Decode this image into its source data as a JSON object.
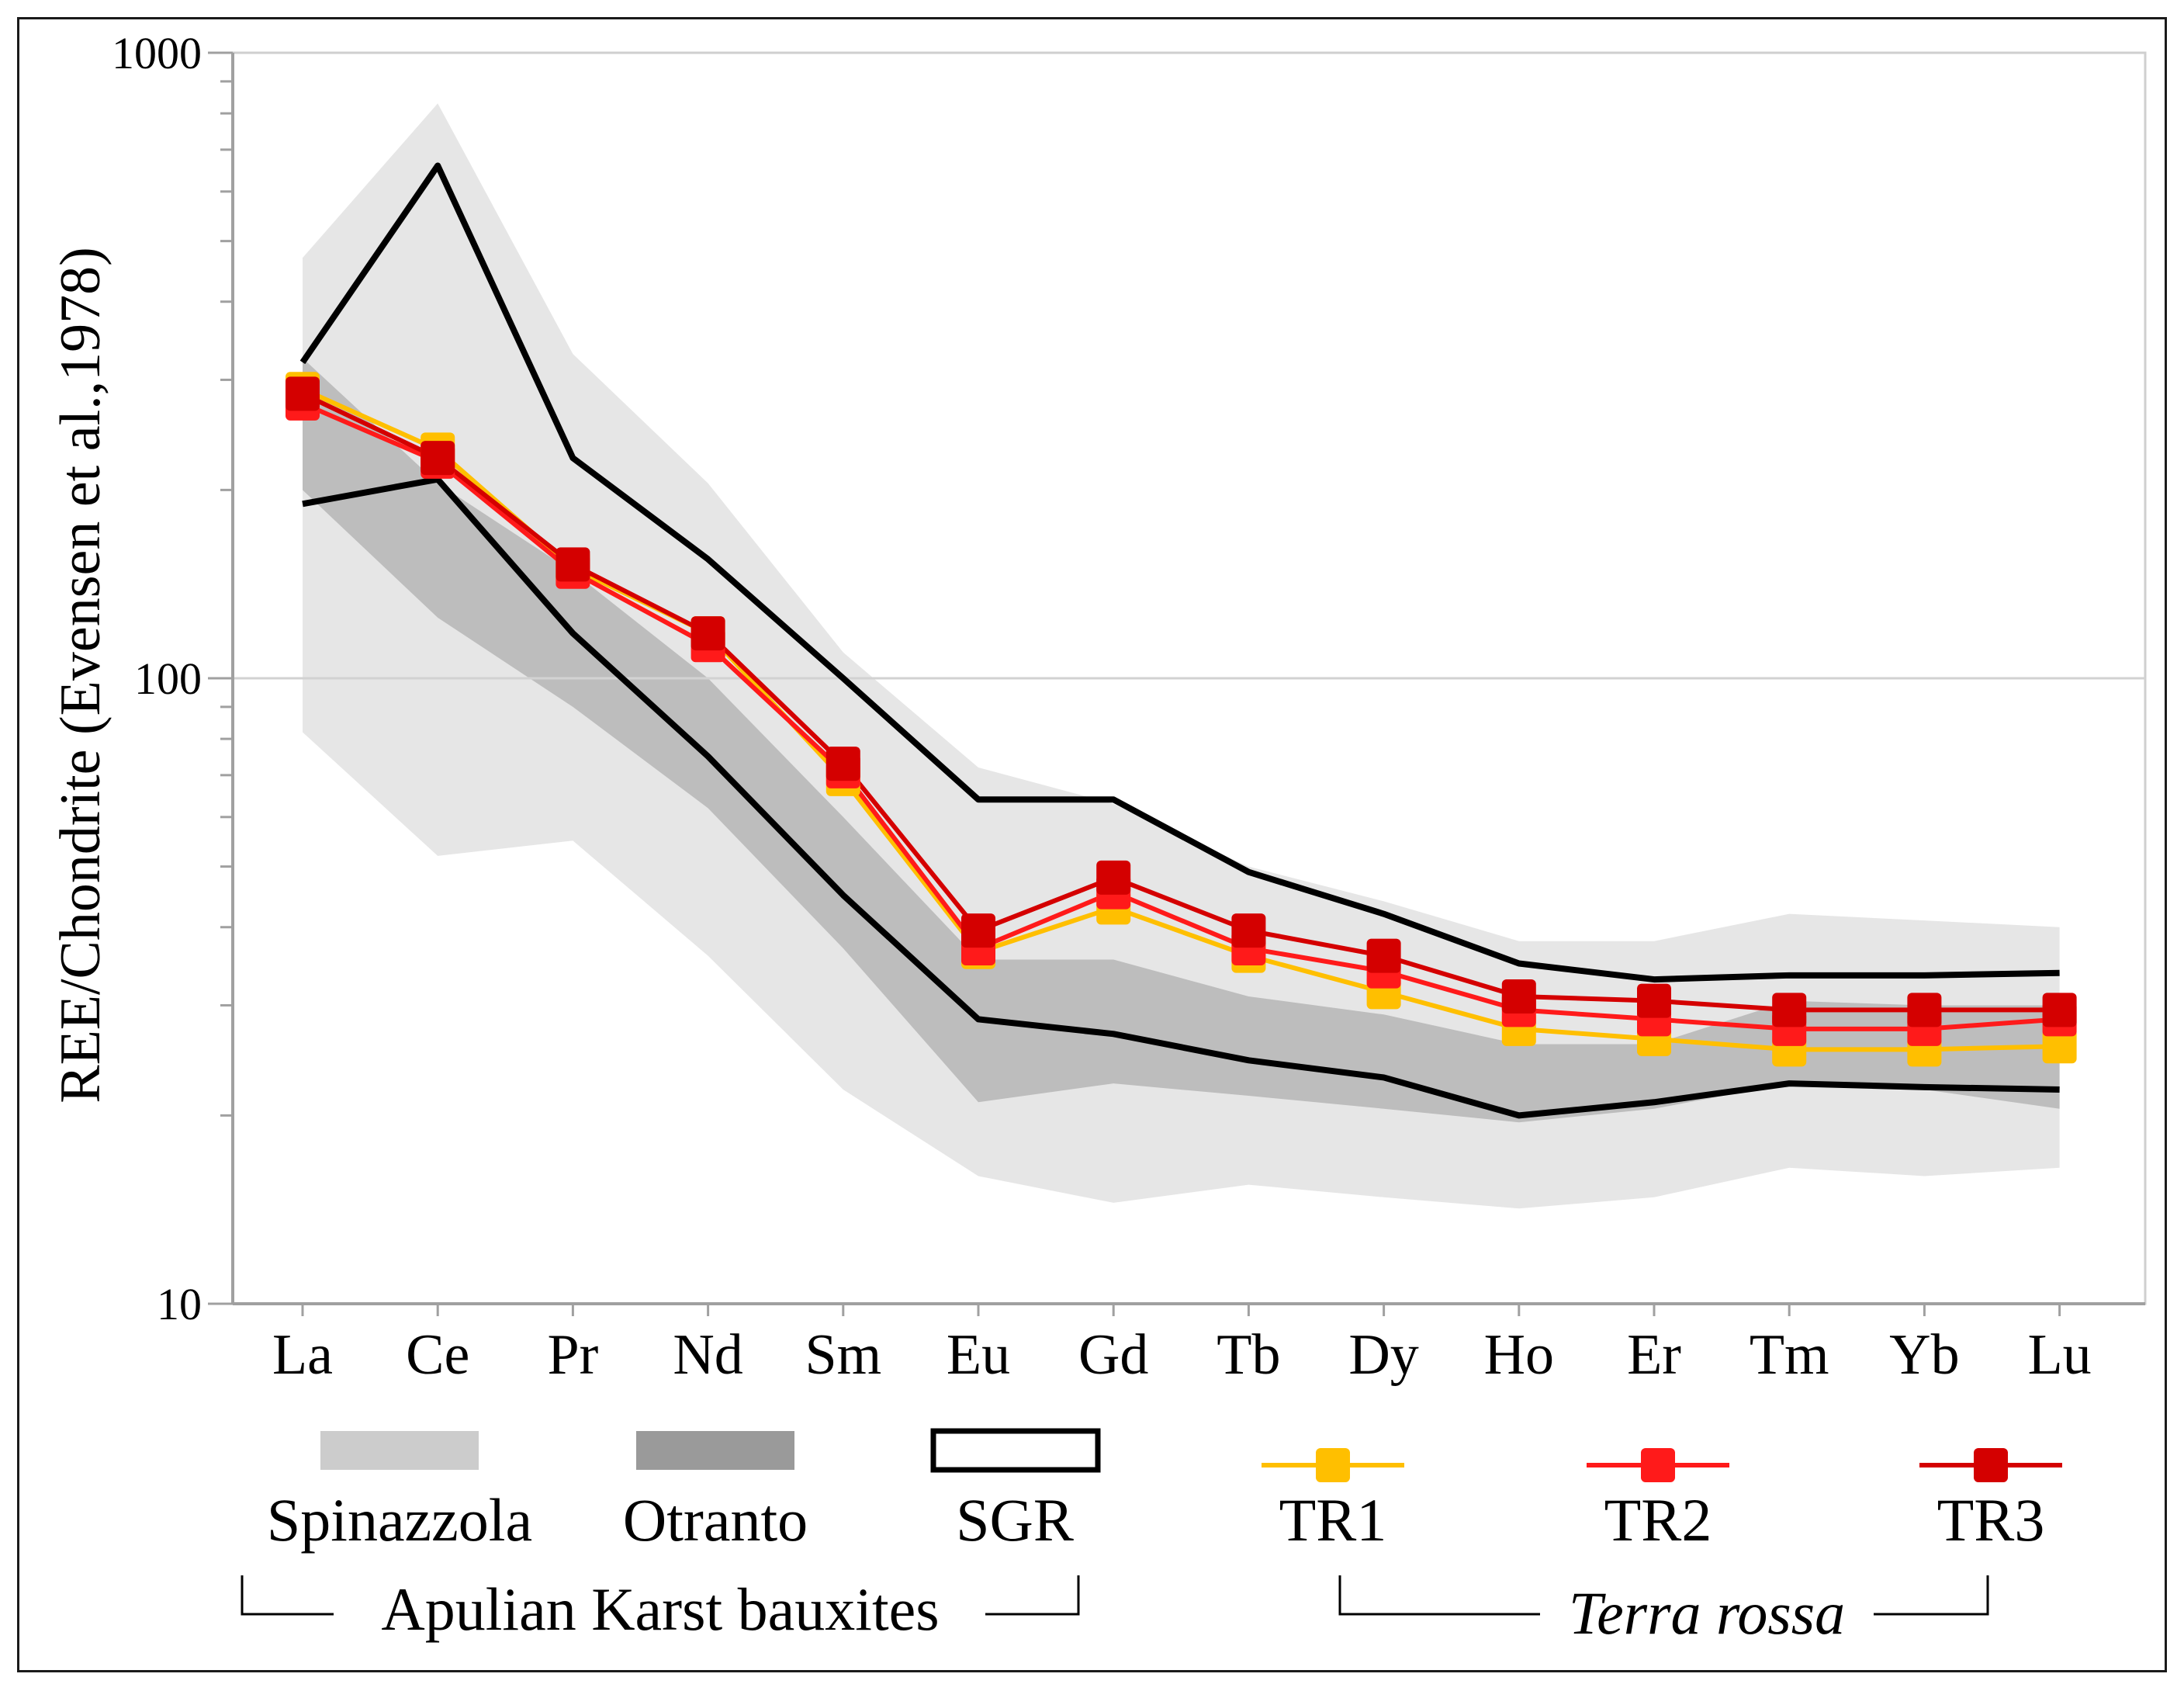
{
  "chart_data": {
    "type": "line",
    "title": "",
    "xlabel": "",
    "ylabel": "REE/Chondrite (Evensen et al.,1978)",
    "yscale": "log",
    "ylim": [
      10,
      1000
    ],
    "yticks": [
      "10",
      "100",
      "1000"
    ],
    "categories": [
      "La",
      "Ce",
      "Pr",
      "Nd",
      "Sm",
      "Eu",
      "Gd",
      "Tb",
      "Dy",
      "Ho",
      "Er",
      "Tm",
      "Yb",
      "Lu"
    ],
    "bands": [
      {
        "name": "Spinazzola",
        "color": "#e6e6e6",
        "upper": [
          470,
          830,
          330,
          205,
          110,
          72,
          63,
          50,
          44,
          38,
          38,
          42,
          41,
          40
        ],
        "lower": [
          82,
          52,
          55,
          36,
          22,
          16,
          14.5,
          15.5,
          14.8,
          14.2,
          14.8,
          16.5,
          16,
          16.5
        ]
      },
      {
        "name": "Otranto",
        "color": "#bdbdbd",
        "upper": [
          325,
          205,
          148,
          100,
          60,
          35.5,
          35.5,
          31,
          29,
          26,
          26,
          30.5,
          30,
          30
        ],
        "lower": [
          200,
          125,
          90,
          62,
          37,
          21,
          22.5,
          21.5,
          20.5,
          19.5,
          20.5,
          22.5,
          22,
          20.5
        ]
      }
    ],
    "envelope": {
      "name": "SGR",
      "color": "#000000",
      "upper": [
        320,
        660,
        225,
        155,
        100,
        64,
        64,
        49,
        42,
        35,
        33,
        33.5,
        33.5,
        33.8
      ],
      "lower": [
        190,
        208,
        118,
        75,
        45,
        28.5,
        27,
        24.5,
        23,
        20,
        21,
        22.5,
        22.2,
        22
      ]
    },
    "series": [
      {
        "name": "TR1",
        "color": "#ffbf00",
        "values": [
          290,
          232,
          150,
          118,
          69,
          36.5,
          43,
          36,
          31.5,
          27.5,
          26.5,
          25.5,
          25.5,
          25.8
        ]
      },
      {
        "name": "TR2",
        "color": "#ff1a1a",
        "values": [
          275,
          222,
          148,
          113,
          71,
          37,
          45.5,
          37,
          34,
          29.5,
          28.5,
          27.5,
          27.5,
          28.5
        ]
      },
      {
        "name": "TR3",
        "color": "#d40000",
        "values": [
          285,
          225,
          152,
          118,
          73,
          39.5,
          48,
          39.5,
          36,
          31,
          30.5,
          29.5,
          29.5,
          29.5
        ]
      }
    ],
    "legend": {
      "position": "bottom",
      "bauxite_group_label": "Apulian Karst bauxites",
      "terra_group_label": "Terra rossa"
    }
  }
}
